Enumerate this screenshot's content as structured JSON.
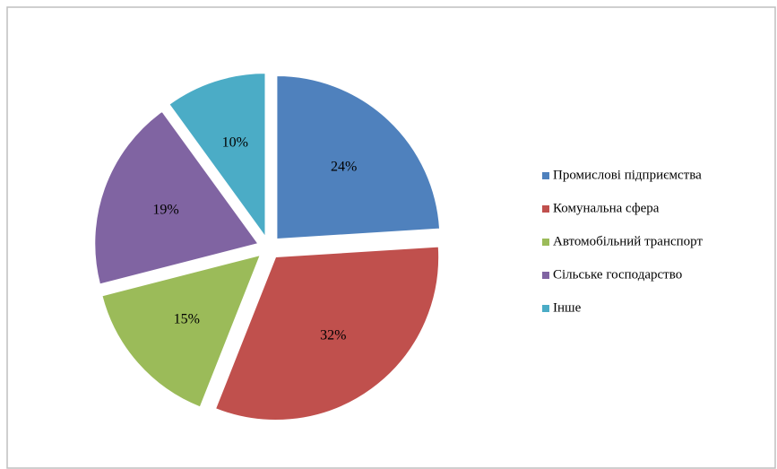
{
  "chart_data": {
    "type": "pie",
    "categories": [
      "Промислові підприємства",
      "Комунальна сфера",
      "Автомобільний транспорт",
      "Сільське господарство",
      "Інше"
    ],
    "values": [
      24,
      32,
      15,
      19,
      10
    ],
    "value_labels": [
      "24%",
      "32%",
      "15%",
      "19%",
      "10%"
    ],
    "colors": [
      "#4f81bd",
      "#c0504d",
      "#9bbb59",
      "#8064a2",
      "#4bacc6"
    ],
    "legend": "right"
  }
}
